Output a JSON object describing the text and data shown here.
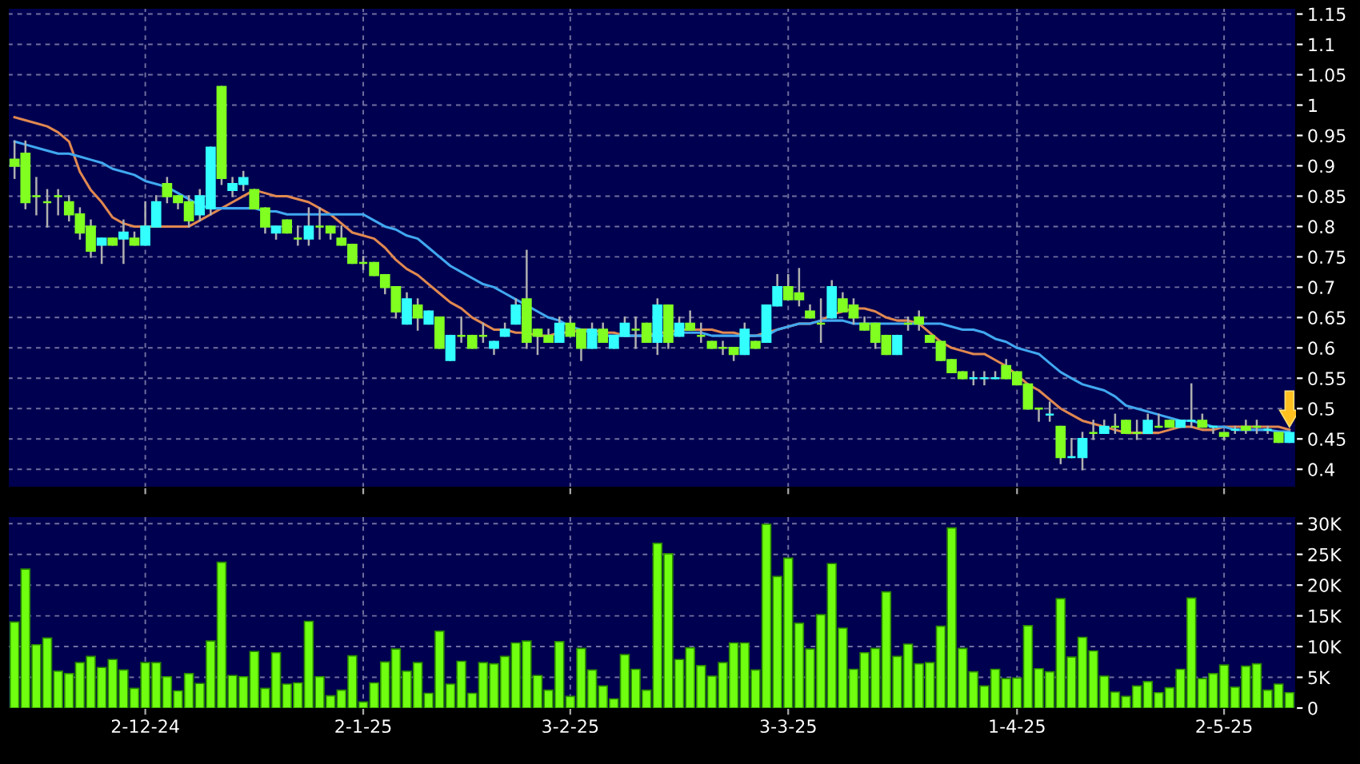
{
  "chart_data": [
    {
      "type": "candlestick",
      "categories": [
        null,
        null,
        null,
        null,
        null,
        null,
        null,
        null,
        null,
        null,
        null,
        null,
        null,
        null,
        null,
        null,
        null,
        null,
        null,
        null,
        null,
        null,
        null,
        null,
        null,
        null,
        null,
        null,
        null,
        null,
        null,
        null,
        null,
        null,
        null,
        null,
        null,
        null,
        null,
        null,
        null,
        null,
        null,
        null,
        null,
        null,
        null,
        null,
        null,
        null,
        null,
        null,
        null,
        null,
        null,
        null,
        null,
        null,
        null,
        null,
        null,
        null,
        null,
        null,
        null,
        null,
        null,
        null,
        null,
        null,
        null,
        null,
        null,
        null,
        null,
        null,
        null,
        null,
        null,
        null,
        null,
        null,
        null,
        null,
        null,
        null,
        null,
        null,
        null,
        null,
        null,
        null,
        null,
        null,
        null,
        null,
        null,
        null,
        null,
        null,
        null,
        null,
        null,
        null,
        null,
        null,
        null,
        null,
        null,
        null,
        null,
        null,
        null,
        null,
        null,
        null,
        null,
        null
      ],
      "ohlc": [
        [
          0.91,
          0.94,
          0.88,
          0.9
        ],
        [
          0.92,
          0.94,
          0.83,
          0.84
        ],
        [
          0.85,
          0.88,
          0.82,
          0.85
        ],
        [
          0.84,
          0.86,
          0.8,
          0.84
        ],
        [
          0.85,
          0.86,
          0.82,
          0.85
        ],
        [
          0.84,
          0.85,
          0.81,
          0.82
        ],
        [
          0.82,
          0.83,
          0.78,
          0.79
        ],
        [
          0.8,
          0.81,
          0.75,
          0.76
        ],
        [
          0.77,
          0.78,
          0.74,
          0.78
        ],
        [
          0.78,
          0.78,
          0.77,
          0.77
        ],
        [
          0.78,
          0.81,
          0.74,
          0.79
        ],
        [
          0.78,
          0.79,
          0.77,
          0.77
        ],
        [
          0.77,
          0.84,
          0.77,
          0.8
        ],
        [
          0.8,
          0.85,
          0.8,
          0.84
        ],
        [
          0.87,
          0.88,
          0.84,
          0.85
        ],
        [
          0.85,
          0.85,
          0.83,
          0.84
        ],
        [
          0.84,
          0.85,
          0.8,
          0.81
        ],
        [
          0.82,
          0.86,
          0.81,
          0.85
        ],
        [
          0.83,
          0.93,
          0.82,
          0.93
        ],
        [
          1.03,
          1.03,
          0.87,
          0.88
        ],
        [
          0.86,
          0.88,
          0.85,
          0.87
        ],
        [
          0.87,
          0.89,
          0.86,
          0.88
        ],
        [
          0.86,
          0.86,
          0.83,
          0.83
        ],
        [
          0.83,
          0.83,
          0.79,
          0.8
        ],
        [
          0.79,
          0.8,
          0.78,
          0.8
        ],
        [
          0.81,
          0.81,
          0.79,
          0.79
        ],
        [
          0.78,
          0.8,
          0.77,
          0.78
        ],
        [
          0.78,
          0.83,
          0.77,
          0.8
        ],
        [
          0.8,
          0.83,
          0.78,
          0.8
        ],
        [
          0.8,
          0.8,
          0.78,
          0.79
        ],
        [
          0.78,
          0.8,
          0.77,
          0.77
        ],
        [
          0.77,
          0.77,
          0.74,
          0.74
        ],
        [
          0.74,
          0.75,
          0.73,
          0.74
        ],
        [
          0.74,
          0.74,
          0.72,
          0.72
        ],
        [
          0.72,
          0.72,
          0.69,
          0.7
        ],
        [
          0.7,
          0.7,
          0.65,
          0.66
        ],
        [
          0.64,
          0.69,
          0.64,
          0.68
        ],
        [
          0.67,
          0.68,
          0.63,
          0.65
        ],
        [
          0.64,
          0.66,
          0.64,
          0.66
        ],
        [
          0.65,
          0.65,
          0.6,
          0.6
        ],
        [
          0.58,
          0.62,
          0.58,
          0.62
        ],
        [
          0.62,
          0.65,
          0.61,
          0.62
        ],
        [
          0.62,
          0.62,
          0.6,
          0.6
        ],
        [
          0.62,
          0.64,
          0.61,
          0.62
        ],
        [
          0.6,
          0.61,
          0.59,
          0.61
        ],
        [
          0.62,
          0.64,
          0.62,
          0.63
        ],
        [
          0.64,
          0.68,
          0.64,
          0.67
        ],
        [
          0.68,
          0.76,
          0.6,
          0.61
        ],
        [
          0.63,
          0.63,
          0.59,
          0.62
        ],
        [
          0.62,
          0.63,
          0.61,
          0.61
        ],
        [
          0.61,
          0.65,
          0.61,
          0.64
        ],
        [
          0.64,
          0.65,
          0.62,
          0.62
        ],
        [
          0.63,
          0.63,
          0.58,
          0.6
        ],
        [
          0.6,
          0.64,
          0.6,
          0.63
        ],
        [
          0.63,
          0.64,
          0.61,
          0.61
        ],
        [
          0.6,
          0.62,
          0.6,
          0.62
        ],
        [
          0.62,
          0.65,
          0.62,
          0.64
        ],
        [
          0.63,
          0.65,
          0.6,
          0.63
        ],
        [
          0.64,
          0.64,
          0.61,
          0.61
        ],
        [
          0.61,
          0.68,
          0.59,
          0.67
        ],
        [
          0.67,
          0.67,
          0.6,
          0.61
        ],
        [
          0.62,
          0.65,
          0.62,
          0.64
        ],
        [
          0.64,
          0.66,
          0.63,
          0.63
        ],
        [
          0.62,
          0.64,
          0.61,
          0.62
        ],
        [
          0.61,
          0.61,
          0.6,
          0.6
        ],
        [
          0.6,
          0.61,
          0.59,
          0.6
        ],
        [
          0.6,
          0.6,
          0.58,
          0.59
        ],
        [
          0.59,
          0.64,
          0.59,
          0.63
        ],
        [
          0.61,
          0.61,
          0.6,
          0.6
        ],
        [
          0.61,
          0.67,
          0.61,
          0.67
        ],
        [
          0.67,
          0.72,
          0.67,
          0.7
        ],
        [
          0.7,
          0.72,
          0.68,
          0.68
        ],
        [
          0.69,
          0.73,
          0.67,
          0.68
        ],
        [
          0.66,
          0.67,
          0.65,
          0.65
        ],
        [
          0.64,
          0.68,
          0.61,
          0.64
        ],
        [
          0.65,
          0.71,
          0.65,
          0.7
        ],
        [
          0.68,
          0.69,
          0.66,
          0.66
        ],
        [
          0.67,
          0.68,
          0.64,
          0.65
        ],
        [
          0.64,
          0.65,
          0.63,
          0.63
        ],
        [
          0.64,
          0.64,
          0.6,
          0.61
        ],
        [
          0.62,
          0.62,
          0.59,
          0.59
        ],
        [
          0.59,
          0.62,
          0.59,
          0.62
        ],
        [
          0.64,
          0.65,
          0.63,
          0.64
        ],
        [
          0.65,
          0.66,
          0.63,
          0.64
        ],
        [
          0.62,
          0.62,
          0.61,
          0.61
        ],
        [
          0.61,
          0.61,
          0.58,
          0.58
        ],
        [
          0.58,
          0.58,
          0.56,
          0.56
        ],
        [
          0.56,
          0.56,
          0.55,
          0.55
        ],
        [
          0.55,
          0.56,
          0.54,
          0.55
        ],
        [
          0.55,
          0.56,
          0.54,
          0.55
        ],
        [
          0.55,
          0.56,
          0.55,
          0.55
        ],
        [
          0.57,
          0.58,
          0.55,
          0.55
        ],
        [
          0.56,
          0.56,
          0.54,
          0.54
        ],
        [
          0.54,
          0.54,
          0.5,
          0.5
        ],
        [
          0.5,
          0.5,
          0.48,
          0.5
        ],
        [
          0.49,
          0.51,
          0.48,
          0.49
        ],
        [
          0.47,
          0.47,
          0.41,
          0.42
        ],
        [
          0.42,
          0.45,
          0.42,
          0.42
        ],
        [
          0.42,
          0.46,
          0.4,
          0.45
        ],
        [
          0.46,
          0.48,
          0.45,
          0.46
        ],
        [
          0.46,
          0.48,
          0.46,
          0.47
        ],
        [
          0.47,
          0.49,
          0.46,
          0.47
        ],
        [
          0.48,
          0.48,
          0.46,
          0.46
        ],
        [
          0.46,
          0.48,
          0.45,
          0.46
        ],
        [
          0.46,
          0.49,
          0.46,
          0.48
        ],
        [
          0.47,
          0.49,
          0.47,
          0.47
        ],
        [
          0.48,
          0.48,
          0.47,
          0.47
        ],
        [
          0.47,
          0.48,
          0.47,
          0.48
        ],
        [
          0.48,
          0.54,
          0.47,
          0.48
        ],
        [
          0.48,
          0.49,
          0.47,
          0.47
        ],
        [
          0.47,
          0.47,
          0.46,
          0.47
        ],
        [
          0.46,
          0.46,
          0.45,
          0.455
        ],
        [
          0.465,
          0.47,
          0.46,
          0.465
        ],
        [
          0.47,
          0.48,
          0.46,
          0.465
        ],
        [
          0.47,
          0.48,
          0.46,
          0.47
        ],
        [
          0.465,
          0.47,
          0.46,
          0.465
        ],
        [
          0.46,
          0.46,
          0.445,
          0.445
        ],
        [
          0.445,
          0.46,
          0.445,
          0.46
        ]
      ],
      "colors": [
        "#80ff20",
        "#80ff20",
        "#80ff20",
        "#80ff20",
        "#80ff20",
        "#80ff20",
        "#80ff20",
        "#80ff20",
        "#33ffff",
        "#80ff20",
        "#33ffff",
        "#80ff20",
        "#33ffff",
        "#33ffff",
        "#80ff20",
        "#80ff20",
        "#80ff20",
        "#33ffff",
        "#33ffff",
        "#80ff20",
        "#33ffff",
        "#33ffff",
        "#80ff20",
        "#80ff20",
        "#33ffff",
        "#80ff20",
        "#80ff20",
        "#33ffff",
        "#80ff20",
        "#80ff20",
        "#80ff20",
        "#80ff20",
        "#80ff20",
        "#80ff20",
        "#80ff20",
        "#80ff20",
        "#33ffff",
        "#80ff20",
        "#33ffff",
        "#80ff20",
        "#33ffff",
        "#80ff20",
        "#80ff20",
        "#80ff20",
        "#33ffff",
        "#33ffff",
        "#33ffff",
        "#80ff20",
        "#80ff20",
        "#80ff20",
        "#33ffff",
        "#80ff20",
        "#80ff20",
        "#33ffff",
        "#80ff20",
        "#33ffff",
        "#33ffff",
        "#80ff20",
        "#80ff20",
        "#33ffff",
        "#80ff20",
        "#33ffff",
        "#80ff20",
        "#80ff20",
        "#80ff20",
        "#80ff20",
        "#80ff20",
        "#33ffff",
        "#80ff20",
        "#33ffff",
        "#33ffff",
        "#80ff20",
        "#80ff20",
        "#80ff20",
        "#80ff20",
        "#33ffff",
        "#80ff20",
        "#80ff20",
        "#80ff20",
        "#80ff20",
        "#80ff20",
        "#33ffff",
        "#80ff20",
        "#80ff20",
        "#80ff20",
        "#80ff20",
        "#80ff20",
        "#80ff20",
        "#33ffff",
        "#33ffff",
        "#33ffff",
        "#80ff20",
        "#80ff20",
        "#80ff20",
        "#80ff20",
        "#33ffff",
        "#80ff20",
        "#33ffff",
        "#33ffff",
        "#80ff20",
        "#33ffff",
        "#80ff20",
        "#80ff20",
        "#80ff20",
        "#33ffff",
        "#80ff20",
        "#80ff20",
        "#33ffff",
        "#33ffff",
        "#80ff20",
        "#33ffff",
        "#80ff20",
        "#33ffff",
        "#80ff20",
        "#80ff20",
        "#33ffff",
        "#80ff20",
        "#33ffff"
      ],
      "series": [
        {
          "type": "line",
          "color": "#e08850",
          "values": [
            0.98,
            0.975,
            0.97,
            0.965,
            0.955,
            0.94,
            0.89,
            0.86,
            0.84,
            0.815,
            0.805,
            0.8,
            0.8,
            0.8,
            0.8,
            0.8,
            0.8,
            0.81,
            0.82,
            0.83,
            0.84,
            0.85,
            0.86,
            0.855,
            0.85,
            0.85,
            0.845,
            0.84,
            0.83,
            0.82,
            0.805,
            0.79,
            0.785,
            0.78,
            0.765,
            0.745,
            0.73,
            0.72,
            0.705,
            0.69,
            0.675,
            0.665,
            0.65,
            0.64,
            0.63,
            0.63,
            0.625,
            0.625,
            0.62,
            0.62,
            0.625,
            0.625,
            0.63,
            0.63,
            0.625,
            0.625,
            0.62,
            0.62,
            0.62,
            0.625,
            0.625,
            0.63,
            0.63,
            0.63,
            0.63,
            0.625,
            0.625,
            0.62,
            0.62,
            0.625,
            0.63,
            0.635,
            0.64,
            0.64,
            0.645,
            0.655,
            0.66,
            0.665,
            0.665,
            0.66,
            0.65,
            0.645,
            0.645,
            0.64,
            0.625,
            0.61,
            0.6,
            0.595,
            0.59,
            0.59,
            0.58,
            0.57,
            0.555,
            0.54,
            0.53,
            0.515,
            0.5,
            0.49,
            0.48,
            0.475,
            0.47,
            0.465,
            0.46,
            0.46,
            0.46,
            0.46,
            0.465,
            0.47,
            0.47,
            0.465,
            0.465,
            0.47,
            0.47,
            0.47,
            0.47,
            0.47,
            0.47,
            0.465
          ]
        },
        {
          "type": "line",
          "color": "#40a8f0",
          "values": [
            0.94,
            0.935,
            0.93,
            0.925,
            0.92,
            0.92,
            0.915,
            0.91,
            0.905,
            0.895,
            0.89,
            0.885,
            0.875,
            0.87,
            0.865,
            0.855,
            0.845,
            0.835,
            0.83,
            0.83,
            0.83,
            0.83,
            0.83,
            0.825,
            0.825,
            0.82,
            0.82,
            0.82,
            0.82,
            0.82,
            0.82,
            0.82,
            0.82,
            0.81,
            0.8,
            0.795,
            0.785,
            0.78,
            0.765,
            0.75,
            0.735,
            0.725,
            0.715,
            0.705,
            0.7,
            0.69,
            0.68,
            0.67,
            0.66,
            0.65,
            0.645,
            0.635,
            0.63,
            0.625,
            0.62,
            0.62,
            0.62,
            0.62,
            0.62,
            0.62,
            0.62,
            0.625,
            0.625,
            0.625,
            0.62,
            0.62,
            0.62,
            0.62,
            0.62,
            0.62,
            0.63,
            0.635,
            0.64,
            0.64,
            0.645,
            0.645,
            0.645,
            0.64,
            0.64,
            0.64,
            0.64,
            0.64,
            0.64,
            0.64,
            0.64,
            0.64,
            0.635,
            0.63,
            0.63,
            0.625,
            0.615,
            0.61,
            0.6,
            0.595,
            0.59,
            0.575,
            0.56,
            0.55,
            0.54,
            0.535,
            0.53,
            0.52,
            0.505,
            0.5,
            0.495,
            0.49,
            0.485,
            0.48,
            0.48,
            0.475,
            0.47,
            0.47,
            0.465,
            0.465,
            0.465,
            0.465,
            0.462,
            0.462
          ]
        }
      ],
      "ylim": [
        0.37,
        1.16
      ],
      "yticks": [
        0.4,
        0.45,
        0.5,
        0.55,
        0.6,
        0.65,
        0.7,
        0.75,
        0.8,
        0.85,
        0.9,
        0.95,
        1,
        1.05,
        1.1,
        1.15
      ],
      "grid": true,
      "tick_labels": "y"
    },
    {
      "type": "bar",
      "categories": [
        null,
        null,
        null,
        null,
        null,
        null,
        null,
        null,
        null,
        null,
        null,
        null,
        "2-12-24",
        null,
        null,
        null,
        null,
        null,
        null,
        null,
        null,
        null,
        null,
        null,
        null,
        null,
        null,
        null,
        null,
        null,
        null,
        null,
        "2-1-25",
        null,
        null,
        null,
        null,
        null,
        null,
        null,
        null,
        null,
        null,
        null,
        null,
        null,
        null,
        null,
        null,
        null,
        null,
        "3-2-25",
        null,
        null,
        null,
        null,
        null,
        null,
        null,
        null,
        null,
        null,
        null,
        null,
        null,
        null,
        null,
        null,
        null,
        null,
        null,
        "3-3-25",
        null,
        null,
        null,
        null,
        null,
        null,
        null,
        null,
        null,
        null,
        null,
        null,
        null,
        null,
        null,
        null,
        null,
        null,
        null,
        null,
        "1-4-25",
        null,
        null,
        null,
        null,
        null,
        null,
        null,
        null,
        null,
        null,
        null,
        null,
        null,
        null,
        null,
        null,
        null,
        null,
        "2-5-25",
        null,
        null,
        null,
        null,
        null,
        null
      ],
      "values": [
        14000,
        22600,
        10300,
        11400,
        6000,
        5600,
        7400,
        8400,
        6600,
        7900,
        6200,
        3200,
        7400,
        7400,
        5100,
        2800,
        5600,
        4000,
        10900,
        23700,
        5300,
        5100,
        9200,
        3200,
        9000,
        3900,
        4100,
        14100,
        5100,
        2000,
        2900,
        8500,
        1000,
        4100,
        7500,
        9600,
        6000,
        7400,
        2400,
        12500,
        3900,
        7600,
        2400,
        7400,
        7200,
        8400,
        10600,
        10900,
        5300,
        2900,
        10800,
        1900,
        9700,
        6200,
        3600,
        1500,
        8700,
        6300,
        2900,
        26800,
        25100,
        7900,
        9800,
        6900,
        5200,
        7400,
        10600,
        10600,
        6200,
        29900,
        21400,
        24400,
        13800,
        9600,
        15200,
        23500,
        13000,
        6300,
        9000,
        9700,
        18900,
        8400,
        10400,
        7200,
        7400,
        13300,
        29300,
        9700,
        5900,
        3600,
        6300,
        4800,
        4900,
        13400,
        6400,
        5900,
        17800,
        8300,
        11500,
        9300,
        5200,
        2600,
        1900,
        3600,
        4300,
        2500,
        3300,
        6300,
        17900,
        4800,
        5600,
        7000,
        3400,
        6800,
        7200,
        2900,
        3900,
        2500
      ],
      "color": "#70ff10",
      "ylim": [
        0,
        31200
      ],
      "yticks": [
        {
          "value": 0,
          "label": "0"
        },
        {
          "value": 5000,
          "label": "5K"
        },
        {
          "value": 10000,
          "label": "10K"
        },
        {
          "value": 15000,
          "label": "15K"
        },
        {
          "value": 20000,
          "label": "20K"
        },
        {
          "value": 25000,
          "label": "25K"
        },
        {
          "value": 30000,
          "label": "30K"
        }
      ],
      "grid": true
    }
  ]
}
